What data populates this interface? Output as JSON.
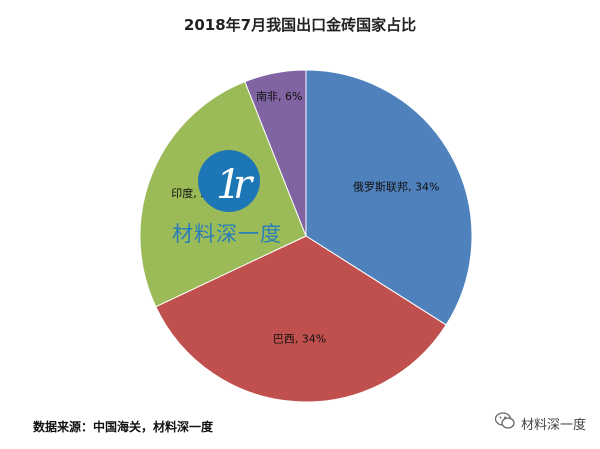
{
  "chart_data": {
    "type": "pie",
    "title": "2018年7月我国出口金砖国家占比",
    "categories": [
      "俄罗斯联邦",
      "巴西",
      "印度",
      "南非"
    ],
    "values": [
      34,
      34,
      26,
      6
    ],
    "labels": [
      "俄罗斯联邦, 34%",
      "巴西, 34%",
      "印度, 26%",
      "南非, 6%"
    ],
    "colors": [
      "#4f81bd",
      "#c0504d",
      "#9bbb59",
      "#8064a2"
    ]
  },
  "watermark": {
    "text": "材料深一度"
  },
  "source": "数据来源：中国海关，材料深一度",
  "badge": {
    "text": "材料深一度",
    "icon": "wechat-icon"
  }
}
